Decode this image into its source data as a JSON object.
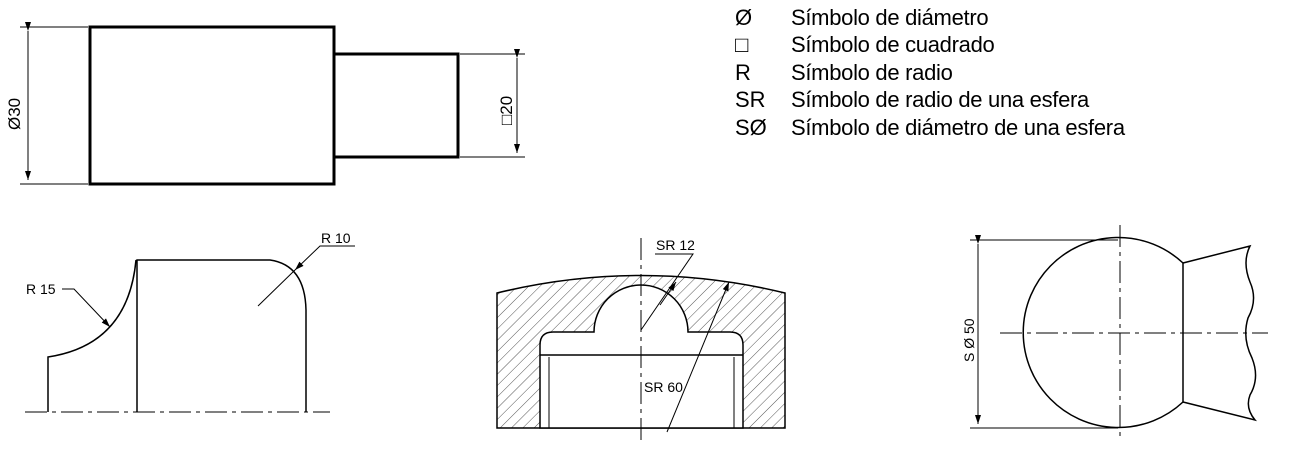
{
  "legend": [
    {
      "symbol": "Ø",
      "text": "Símbolo de diámetro",
      "icon": "diameter-symbol-icon"
    },
    {
      "symbol": "□",
      "text": "Símbolo de cuadrado",
      "icon": "square-symbol-icon"
    },
    {
      "symbol": "R",
      "text": "Símbolo de radio"
    },
    {
      "symbol": "SR",
      "text": "Símbolo de radio de una esfera"
    },
    {
      "symbol": "SØ",
      "text": "Símbolo de diámetro de una esfera"
    }
  ],
  "shaft": {
    "diameter_label": "Ø30",
    "square_label": "□20"
  },
  "fillet": {
    "label_r15": "R 15",
    "label_r10": "R 10"
  },
  "cap": {
    "label_sr12": "SR 12",
    "label_sr60": "SR 60"
  },
  "sphere": {
    "label_sd50": "S Ø 50"
  }
}
